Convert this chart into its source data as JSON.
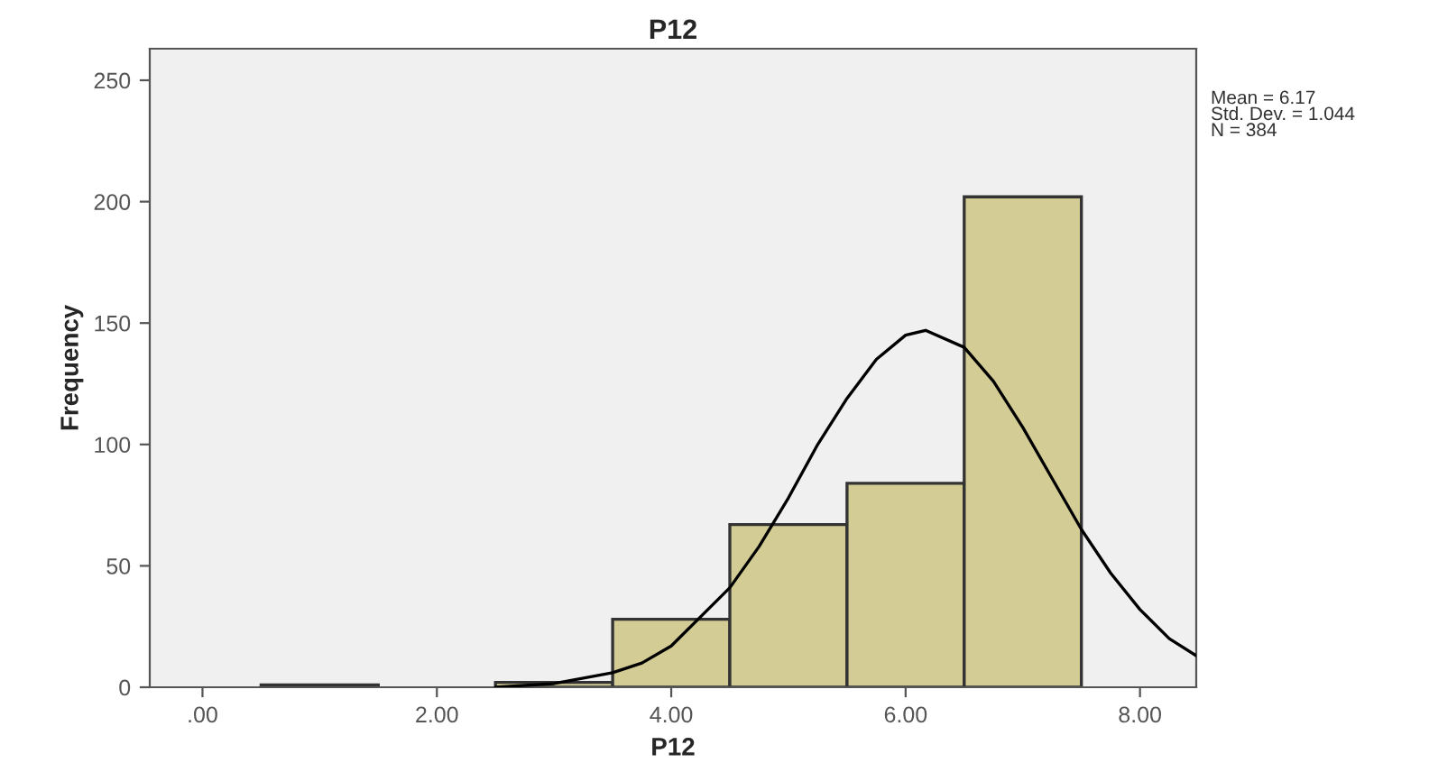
{
  "chart_data": {
    "type": "histogram",
    "title": "P12",
    "xlabel": "P12",
    "ylabel": "Frequency",
    "bins": [
      0.5,
      1.5,
      2.5,
      3.5,
      4.5,
      5.5,
      6.5,
      7.5
    ],
    "values": [
      1,
      0,
      2,
      28,
      67,
      84,
      202
    ],
    "color": "#d3cc95",
    "series": [
      {
        "type": "line",
        "color": "#000000",
        "x": [
          2.5,
          3.0,
          3.5,
          3.75,
          4.0,
          4.5,
          4.75,
          5.0,
          5.25,
          5.5,
          5.75,
          6.0,
          6.17,
          6.5,
          6.75,
          7.0,
          7.25,
          7.5,
          7.75,
          8.0,
          8.25,
          8.48
        ],
        "values": [
          0,
          1.5,
          6,
          10,
          17,
          41,
          58,
          78,
          100,
          119,
          135,
          145,
          147,
          140,
          126,
          107,
          86,
          65,
          47,
          32,
          20,
          13
        ]
      }
    ],
    "xlim": [
      -0.45,
      8.48
    ],
    "ylim": [
      0,
      263
    ],
    "xticks": [
      {
        "value": 0,
        "label": ".00"
      },
      {
        "value": 2,
        "label": "2.00"
      },
      {
        "value": 4,
        "label": "4.00"
      },
      {
        "value": 6,
        "label": "6.00"
      },
      {
        "value": 8,
        "label": "8.00"
      }
    ],
    "yticks": [
      0,
      50,
      100,
      150,
      200,
      250
    ],
    "annotations": [
      "Mean = 6.17",
      "Std. Dev. = 1.044",
      "N = 384"
    ],
    "grid": false,
    "legend": false
  }
}
